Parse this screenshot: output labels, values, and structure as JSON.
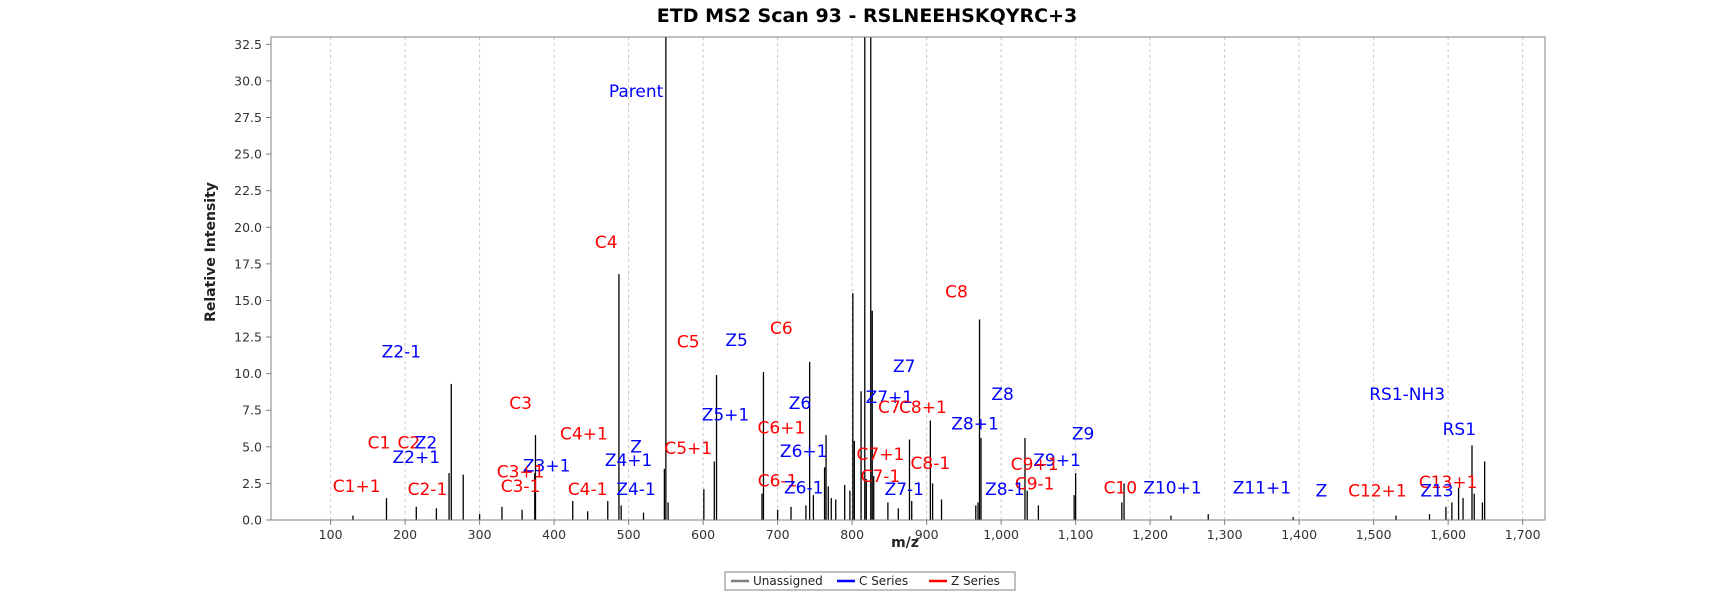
{
  "chart_data": {
    "type": "bar",
    "title": "ETD MS2 Scan 93 - RSLNEEHSKQYRC+3",
    "xlabel": "m/z",
    "ylabel": "Relative Intensity",
    "xlim": [
      20,
      1730
    ],
    "ylim": [
      0,
      33
    ],
    "x_ticks": [
      100,
      200,
      300,
      400,
      500,
      600,
      700,
      800,
      900,
      1000,
      1100,
      1200,
      1300,
      1400,
      1500,
      1600,
      1700
    ],
    "x_tick_labels": [
      "100",
      "200",
      "300",
      "400",
      "500",
      "600",
      "700",
      "800",
      "900",
      "1,000",
      "1,100",
      "1,200",
      "1,300",
      "1,400",
      "1,500",
      "1,600",
      "1,700"
    ],
    "y_ticks": [
      0.0,
      2.5,
      5.0,
      7.5,
      10.0,
      12.5,
      15.0,
      17.5,
      20.0,
      22.5,
      25.0,
      27.5,
      30.0,
      32.5
    ],
    "y_tick_labels": [
      "0.0",
      "2.5",
      "5.0",
      "7.5",
      "10.0",
      "12.5",
      "15.0",
      "17.5",
      "20.0",
      "22.5",
      "25.0",
      "27.5",
      "30.0",
      "32.5"
    ],
    "grid": "vertical dashed",
    "legend_position": "bottom",
    "legend": [
      {
        "label": "Unassigned",
        "color": "#808080"
      },
      {
        "label": "C Series",
        "color": "#0000ff"
      },
      {
        "label": "Z Series",
        "color": "#ff0000"
      }
    ],
    "peaks": [
      {
        "mz": 130,
        "intensity": 0.3
      },
      {
        "mz": 175,
        "intensity": 1.5
      },
      {
        "mz": 215,
        "intensity": 0.9
      },
      {
        "mz": 242,
        "intensity": 0.8
      },
      {
        "mz": 259,
        "intensity": 3.2
      },
      {
        "mz": 262,
        "intensity": 9.3
      },
      {
        "mz": 278,
        "intensity": 3.1
      },
      {
        "mz": 300,
        "intensity": 0.4
      },
      {
        "mz": 330,
        "intensity": 0.9
      },
      {
        "mz": 357,
        "intensity": 0.7
      },
      {
        "mz": 374,
        "intensity": 3.2
      },
      {
        "mz": 375,
        "intensity": 5.8
      },
      {
        "mz": 425,
        "intensity": 1.3
      },
      {
        "mz": 445,
        "intensity": 0.6
      },
      {
        "mz": 472,
        "intensity": 1.3
      },
      {
        "mz": 487,
        "intensity": 16.8
      },
      {
        "mz": 490,
        "intensity": 1.0
      },
      {
        "mz": 520,
        "intensity": 0.5
      },
      {
        "mz": 548,
        "intensity": 3.5
      },
      {
        "mz": 550,
        "intensity": 33.0
      },
      {
        "mz": 553,
        "intensity": 1.2
      },
      {
        "mz": 601,
        "intensity": 2.1
      },
      {
        "mz": 615,
        "intensity": 4.0
      },
      {
        "mz": 618,
        "intensity": 9.9
      },
      {
        "mz": 679,
        "intensity": 1.8
      },
      {
        "mz": 681,
        "intensity": 10.1
      },
      {
        "mz": 700,
        "intensity": 0.7
      },
      {
        "mz": 718,
        "intensity": 0.9
      },
      {
        "mz": 738,
        "intensity": 1.0
      },
      {
        "mz": 743,
        "intensity": 10.8
      },
      {
        "mz": 748,
        "intensity": 1.7
      },
      {
        "mz": 763,
        "intensity": 3.6
      },
      {
        "mz": 765,
        "intensity": 5.8
      },
      {
        "mz": 768,
        "intensity": 2.3
      },
      {
        "mz": 772,
        "intensity": 1.5
      },
      {
        "mz": 778,
        "intensity": 1.4
      },
      {
        "mz": 790,
        "intensity": 2.4
      },
      {
        "mz": 797,
        "intensity": 2.0
      },
      {
        "mz": 801,
        "intensity": 15.5
      },
      {
        "mz": 803,
        "intensity": 5.4
      },
      {
        "mz": 812,
        "intensity": 8.8
      },
      {
        "mz": 817,
        "intensity": 33.0
      },
      {
        "mz": 819,
        "intensity": 2.8
      },
      {
        "mz": 825,
        "intensity": 33.0
      },
      {
        "mz": 827,
        "intensity": 14.3
      },
      {
        "mz": 829,
        "intensity": 3.0
      },
      {
        "mz": 848,
        "intensity": 1.2
      },
      {
        "mz": 862,
        "intensity": 0.8
      },
      {
        "mz": 877,
        "intensity": 5.5
      },
      {
        "mz": 880,
        "intensity": 1.3
      },
      {
        "mz": 905,
        "intensity": 6.8
      },
      {
        "mz": 908,
        "intensity": 2.5
      },
      {
        "mz": 920,
        "intensity": 1.4
      },
      {
        "mz": 966,
        "intensity": 1.0
      },
      {
        "mz": 969,
        "intensity": 1.2
      },
      {
        "mz": 971,
        "intensity": 13.7
      },
      {
        "mz": 973,
        "intensity": 5.6
      },
      {
        "mz": 1032,
        "intensity": 5.6
      },
      {
        "mz": 1035,
        "intensity": 2.0
      },
      {
        "mz": 1050,
        "intensity": 1.0
      },
      {
        "mz": 1098,
        "intensity": 1.7
      },
      {
        "mz": 1100,
        "intensity": 3.2
      },
      {
        "mz": 1162,
        "intensity": 1.2
      },
      {
        "mz": 1165,
        "intensity": 2.5
      },
      {
        "mz": 1228,
        "intensity": 0.3
      },
      {
        "mz": 1278,
        "intensity": 0.4
      },
      {
        "mz": 1392,
        "intensity": 0.2
      },
      {
        "mz": 1530,
        "intensity": 0.3
      },
      {
        "mz": 1575,
        "intensity": 0.4
      },
      {
        "mz": 1597,
        "intensity": 0.9
      },
      {
        "mz": 1605,
        "intensity": 1.2
      },
      {
        "mz": 1614,
        "intensity": 2.2
      },
      {
        "mz": 1620,
        "intensity": 1.5
      },
      {
        "mz": 1632,
        "intensity": 5.1
      },
      {
        "mz": 1635,
        "intensity": 1.8
      },
      {
        "mz": 1646,
        "intensity": 1.2
      },
      {
        "mz": 1649,
        "intensity": 4.0
      }
    ],
    "annotations": [
      {
        "text": "Parent",
        "color": "#0000ff",
        "mz": 510,
        "y": 28.9
      },
      {
        "text": "C4",
        "color": "#ff0000",
        "mz": 470,
        "y": 18.6
      },
      {
        "text": "C8",
        "color": "#ff0000",
        "mz": 940,
        "y": 15.2
      },
      {
        "text": "C6",
        "color": "#ff0000",
        "mz": 705,
        "y": 12.7
      },
      {
        "text": "Z5",
        "color": "#0000ff",
        "mz": 645,
        "y": 11.9
      },
      {
        "text": "C5",
        "color": "#ff0000",
        "mz": 580,
        "y": 11.8
      },
      {
        "text": "Z2-1",
        "color": "#0000ff",
        "mz": 195,
        "y": 11.1
      },
      {
        "text": "Z7",
        "color": "#0000ff",
        "mz": 870,
        "y": 10.1
      },
      {
        "text": "Z7+1",
        "color": "#0000ff",
        "mz": 850,
        "y": 8.0
      },
      {
        "text": "Z8",
        "color": "#0000ff",
        "mz": 1002,
        "y": 8.2
      },
      {
        "text": "RS1-NH3",
        "color": "#0000ff",
        "mz": 1545,
        "y": 8.2
      },
      {
        "text": "C3",
        "color": "#ff0000",
        "mz": 355,
        "y": 7.6
      },
      {
        "text": "Z6",
        "color": "#0000ff",
        "mz": 730,
        "y": 7.6
      },
      {
        "text": "C7",
        "color": "#ff0000",
        "mz": 850,
        "y": 7.3
      },
      {
        "text": "C8+1",
        "color": "#ff0000",
        "mz": 895,
        "y": 7.3
      },
      {
        "text": "Z5+1",
        "color": "#0000ff",
        "mz": 630,
        "y": 6.8
      },
      {
        "text": "Z8+1",
        "color": "#0000ff",
        "mz": 965,
        "y": 6.2
      },
      {
        "text": "C6+1",
        "color": "#ff0000",
        "mz": 705,
        "y": 5.9
      },
      {
        "text": "RS1",
        "color": "#0000ff",
        "mz": 1615,
        "y": 5.8
      },
      {
        "text": "C4+1",
        "color": "#ff0000",
        "mz": 440,
        "y": 5.5
      },
      {
        "text": "Z9",
        "color": "#0000ff",
        "mz": 1110,
        "y": 5.5
      },
      {
        "text": "C1",
        "color": "#ff0000",
        "mz": 165,
        "y": 4.9
      },
      {
        "text": "C2",
        "color": "#ff0000",
        "mz": 205,
        "y": 4.9
      },
      {
        "text": "Z2",
        "color": "#0000ff",
        "mz": 228,
        "y": 4.9
      },
      {
        "text": "Z",
        "color": "#0000ff",
        "mz": 510,
        "y": 4.6
      },
      {
        "text": "C5+1",
        "color": "#ff0000",
        "mz": 580,
        "y": 4.5
      },
      {
        "text": "Z6+1",
        "color": "#0000ff",
        "mz": 735,
        "y": 4.3
      },
      {
        "text": "C7+1",
        "color": "#ff0000",
        "mz": 838,
        "y": 4.1
      },
      {
        "text": "Z2+1",
        "color": "#0000ff",
        "mz": 215,
        "y": 3.9
      },
      {
        "text": "Z4+1",
        "color": "#0000ff",
        "mz": 500,
        "y": 3.7
      },
      {
        "text": "Z9+1",
        "color": "#0000ff",
        "mz": 1075,
        "y": 3.7
      },
      {
        "text": "C8-1",
        "color": "#ff0000",
        "mz": 905,
        "y": 3.5
      },
      {
        "text": "C9+1",
        "color": "#ff0000",
        "mz": 1045,
        "y": 3.4
      },
      {
        "text": "Z3+1",
        "color": "#0000ff",
        "mz": 390,
        "y": 3.3
      },
      {
        "text": "C3+1",
        "color": "#ff0000",
        "mz": 355,
        "y": 2.9
      },
      {
        "text": "C7-1",
        "color": "#ff0000",
        "mz": 838,
        "y": 2.6
      },
      {
        "text": "C6-1",
        "color": "#ff0000",
        "mz": 700,
        "y": 2.3
      },
      {
        "text": "C13+1",
        "color": "#ff0000",
        "mz": 1600,
        "y": 2.2
      },
      {
        "text": "C9-1",
        "color": "#ff0000",
        "mz": 1045,
        "y": 2.1
      },
      {
        "text": "C1+1",
        "color": "#ff0000",
        "mz": 135,
        "y": 1.9
      },
      {
        "text": "C3-1",
        "color": "#ff0000",
        "mz": 355,
        "y": 1.9
      },
      {
        "text": "C10",
        "color": "#ff0000",
        "mz": 1160,
        "y": 1.8
      },
      {
        "text": "Z10+1",
        "color": "#0000ff",
        "mz": 1230,
        "y": 1.8
      },
      {
        "text": "Z11+1",
        "color": "#0000ff",
        "mz": 1350,
        "y": 1.8
      },
      {
        "text": "C2-1",
        "color": "#ff0000",
        "mz": 230,
        "y": 1.7
      },
      {
        "text": "Z6-1",
        "color": "#0000ff",
        "mz": 735,
        "y": 1.8
      },
      {
        "text": "C4-1",
        "color": "#ff0000",
        "mz": 445,
        "y": 1.7
      },
      {
        "text": "Z4-1",
        "color": "#0000ff",
        "mz": 510,
        "y": 1.7
      },
      {
        "text": "Z7-1",
        "color": "#0000ff",
        "mz": 870,
        "y": 1.7
      },
      {
        "text": "Z8-1",
        "color": "#0000ff",
        "mz": 1005,
        "y": 1.7
      },
      {
        "text": "C12+1",
        "color": "#ff0000",
        "mz": 1505,
        "y": 1.6
      },
      {
        "text": "Z",
        "color": "#0000ff",
        "mz": 1430,
        "y": 1.6
      },
      {
        "text": "Z13",
        "color": "#0000ff",
        "mz": 1585,
        "y": 1.6
      }
    ]
  }
}
